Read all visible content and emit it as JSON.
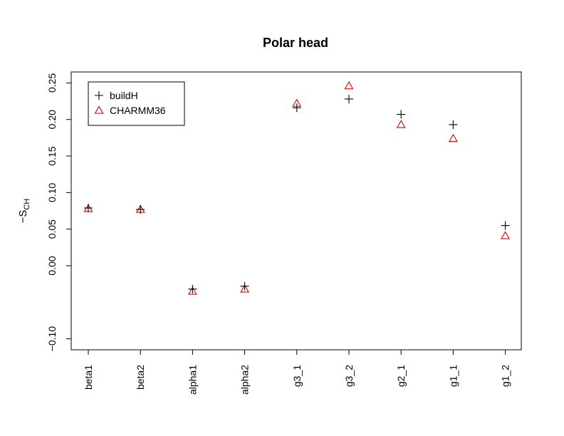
{
  "chart_data": {
    "type": "scatter",
    "title": "Polar head",
    "xlabel": "",
    "ylabel": "−S",
    "ylabel_sub": "CH",
    "categories": [
      "beta1",
      "beta2",
      "alpha1",
      "alpha2",
      "g3_1",
      "g3_2",
      "g2_1",
      "g1_1",
      "g1_2"
    ],
    "ylim": [
      -0.115,
      0.265
    ],
    "yticks": [
      -0.1,
      0.0,
      0.05,
      0.1,
      0.15,
      0.2,
      0.25
    ],
    "ytick_labels": [
      "−0.10",
      "0.00",
      "0.05",
      "0.10",
      "0.15",
      "0.20",
      "0.25"
    ],
    "grid": false,
    "legend_position": "top-left",
    "series": [
      {
        "name": "buildH",
        "marker": "plus",
        "color": "#000000",
        "values": [
          0.079,
          0.077,
          -0.032,
          -0.028,
          0.216,
          0.228,
          0.207,
          0.193,
          0.055
        ]
      },
      {
        "name": "CHARMM36",
        "marker": "triangle",
        "color": "#dd0000",
        "values": [
          0.078,
          0.077,
          -0.035,
          -0.032,
          0.222,
          0.246,
          0.193,
          0.174,
          0.041
        ]
      }
    ]
  }
}
